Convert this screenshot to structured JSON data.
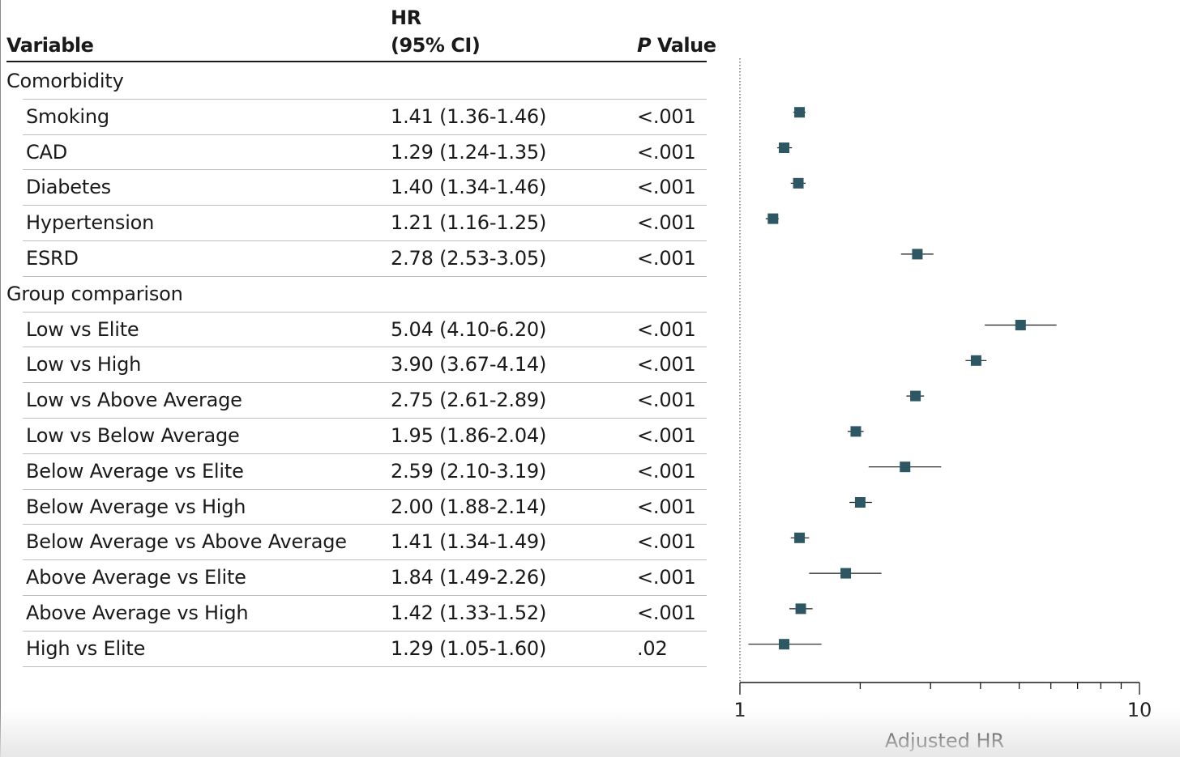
{
  "table": {
    "headers": {
      "variable": "Variable",
      "hr_line1": "HR",
      "hr_line2": "(95% CI)",
      "p_italic": "P",
      "p_rest": " Value"
    },
    "groups": [
      {
        "label": "Comorbidity",
        "rows": [
          {
            "variable": "Smoking",
            "hr_ci": "1.41 (1.36-1.46)",
            "p": "<.001"
          },
          {
            "variable": "CAD",
            "hr_ci": "1.29 (1.24-1.35)",
            "p": "<.001"
          },
          {
            "variable": "Diabetes",
            "hr_ci": "1.40 (1.34-1.46)",
            "p": "<.001"
          },
          {
            "variable": "Hypertension",
            "hr_ci": "1.21 (1.16-1.25)",
            "p": "<.001"
          },
          {
            "variable": "ESRD",
            "hr_ci": "2.78 (2.53-3.05)",
            "p": "<.001"
          }
        ]
      },
      {
        "label": "Group comparison",
        "rows": [
          {
            "variable": "Low vs Elite",
            "hr_ci": "5.04 (4.10-6.20)",
            "p": "<.001"
          },
          {
            "variable": "Low vs High",
            "hr_ci": "3.90 (3.67-4.14)",
            "p": "<.001"
          },
          {
            "variable": "Low vs Above Average",
            "hr_ci": "2.75 (2.61-2.89)",
            "p": "<.001"
          },
          {
            "variable": "Low vs Below Average",
            "hr_ci": "1.95 (1.86-2.04)",
            "p": "<.001"
          },
          {
            "variable": "Below Average vs Elite",
            "hr_ci": "2.59 (2.10-3.19)",
            "p": "<.001"
          },
          {
            "variable": "Below Average vs High",
            "hr_ci": "2.00 (1.88-2.14)",
            "p": "<.001"
          },
          {
            "variable": "Below Average vs Above Average",
            "hr_ci": "1.41 (1.34-1.49)",
            "p": "<.001"
          },
          {
            "variable": "Above Average vs Elite",
            "hr_ci": "1.84 (1.49-2.26)",
            "p": "<.001"
          },
          {
            "variable": "Above Average vs High",
            "hr_ci": "1.42 (1.33-1.52)",
            "p": "<.001"
          },
          {
            "variable": "High vs Elite",
            "hr_ci": "1.29 (1.05-1.60)",
            "p": ".02"
          }
        ]
      }
    ]
  },
  "chart_data": {
    "type": "scatter",
    "subtype": "forest-plot",
    "x_scale": "log",
    "xlim": [
      1,
      10
    ],
    "xlabel": "Adjusted HR",
    "x_tick_labels": [
      "1",
      "10"
    ],
    "reference_line": 1,
    "marker_color": "#2e5764",
    "points": [
      {
        "label": "Smoking",
        "hr": 1.41,
        "lo": 1.36,
        "hi": 1.46
      },
      {
        "label": "CAD",
        "hr": 1.29,
        "lo": 1.24,
        "hi": 1.35
      },
      {
        "label": "Diabetes",
        "hr": 1.4,
        "lo": 1.34,
        "hi": 1.46
      },
      {
        "label": "Hypertension",
        "hr": 1.21,
        "lo": 1.16,
        "hi": 1.25
      },
      {
        "label": "ESRD",
        "hr": 2.78,
        "lo": 2.53,
        "hi": 3.05
      },
      {
        "label": "Low vs Elite",
        "hr": 5.04,
        "lo": 4.1,
        "hi": 6.2
      },
      {
        "label": "Low vs High",
        "hr": 3.9,
        "lo": 3.67,
        "hi": 4.14
      },
      {
        "label": "Low vs Above Average",
        "hr": 2.75,
        "lo": 2.61,
        "hi": 2.89
      },
      {
        "label": "Low vs Below Average",
        "hr": 1.95,
        "lo": 1.86,
        "hi": 2.04
      },
      {
        "label": "Below Average vs Elite",
        "hr": 2.59,
        "lo": 2.1,
        "hi": 3.19
      },
      {
        "label": "Below Average vs High",
        "hr": 2.0,
        "lo": 1.88,
        "hi": 2.14
      },
      {
        "label": "Below Average vs Above Average",
        "hr": 1.41,
        "lo": 1.34,
        "hi": 1.49
      },
      {
        "label": "Above Average vs Elite",
        "hr": 1.84,
        "lo": 1.49,
        "hi": 2.26
      },
      {
        "label": "Above Average vs High",
        "hr": 1.42,
        "lo": 1.33,
        "hi": 1.52
      },
      {
        "label": "High vs Elite",
        "hr": 1.29,
        "lo": 1.05,
        "hi": 1.6
      }
    ]
  }
}
